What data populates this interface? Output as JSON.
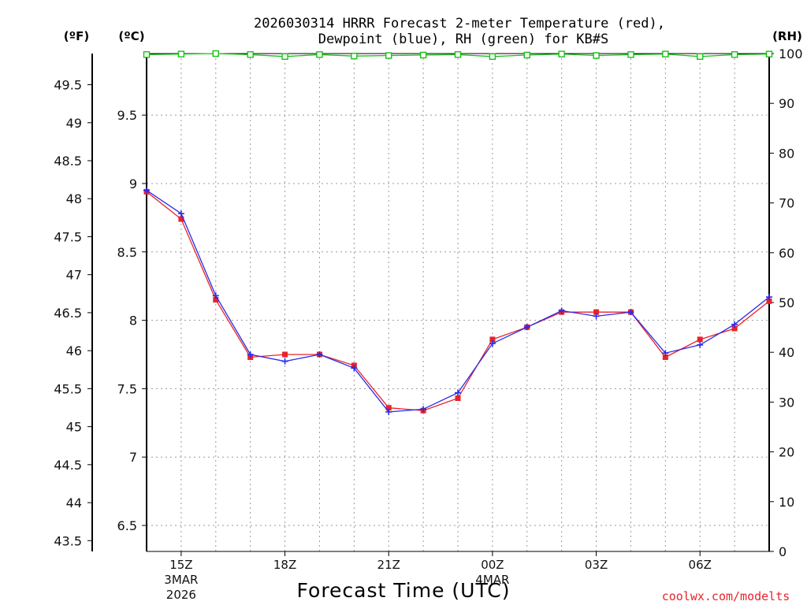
{
  "chart_data": {
    "type": "line",
    "title_line1": "2026030314 HRRR Forecast 2-meter Temperature (red),",
    "title_line2": "Dewpoint (blue), RH (green) for KB#S",
    "unit_left_f": "(ºF)",
    "unit_left_c": "(ºC)",
    "unit_right": "(RH)",
    "xlabel": "Forecast Time (UTC)",
    "credit": "coolwx.com/modelts",
    "x_hours": [
      14,
      15,
      16,
      17,
      18,
      19,
      20,
      21,
      22,
      23,
      24,
      25,
      26,
      27,
      28,
      29,
      30,
      31,
      32
    ],
    "xlim": [
      14,
      32
    ],
    "x_ticks": [
      {
        "hour": 15,
        "label": "15Z",
        "sub1": "3MAR",
        "sub2": "2026"
      },
      {
        "hour": 18,
        "label": "18Z",
        "sub1": "",
        "sub2": ""
      },
      {
        "hour": 21,
        "label": "21Z",
        "sub1": "",
        "sub2": ""
      },
      {
        "hour": 24,
        "label": "00Z",
        "sub1": "4MAR",
        "sub2": ""
      },
      {
        "hour": 27,
        "label": "03Z",
        "sub1": "",
        "sub2": ""
      },
      {
        "hour": 30,
        "label": "06Z",
        "sub1": "",
        "sub2": ""
      }
    ],
    "ylim_c": [
      6.31,
      9.95
    ],
    "y_ticks_c": [
      "6.5",
      "7",
      "7.5",
      "8",
      "8.5",
      "9",
      "9.5"
    ],
    "y_ticks_f": [
      "43.5",
      "44",
      "44.5",
      "45",
      "45.5",
      "46",
      "46.5",
      "47",
      "47.5",
      "48",
      "48.5",
      "49",
      "49.5"
    ],
    "ylim_rh": [
      0,
      100
    ],
    "y_ticks_rh": [
      "0",
      "10",
      "20",
      "30",
      "40",
      "50",
      "60",
      "70",
      "80",
      "90",
      "100"
    ],
    "series": [
      {
        "name": "Temperature",
        "color": "#e8232a",
        "marker": "square",
        "values": [
          8.94,
          8.74,
          8.15,
          7.73,
          7.75,
          7.75,
          7.67,
          7.36,
          7.34,
          7.43,
          7.86,
          7.95,
          8.06,
          8.06,
          8.06,
          7.73,
          7.86,
          7.94,
          8.14
        ]
      },
      {
        "name": "Dewpoint",
        "color": "#2b2be8",
        "marker": "plus",
        "values": [
          8.95,
          8.78,
          8.18,
          7.75,
          7.7,
          7.75,
          7.65,
          7.33,
          7.35,
          7.47,
          7.83,
          7.95,
          8.07,
          8.03,
          8.06,
          7.76,
          7.82,
          7.97,
          8.17
        ]
      },
      {
        "name": "RH",
        "color": "#18c018",
        "marker": "open-square",
        "values": [
          99.8,
          99.9,
          100,
          99.8,
          99.4,
          99.8,
          99.5,
          99.6,
          99.7,
          99.8,
          99.4,
          99.7,
          99.9,
          99.6,
          99.8,
          99.9,
          99.4,
          99.8,
          99.9
        ]
      }
    ]
  }
}
